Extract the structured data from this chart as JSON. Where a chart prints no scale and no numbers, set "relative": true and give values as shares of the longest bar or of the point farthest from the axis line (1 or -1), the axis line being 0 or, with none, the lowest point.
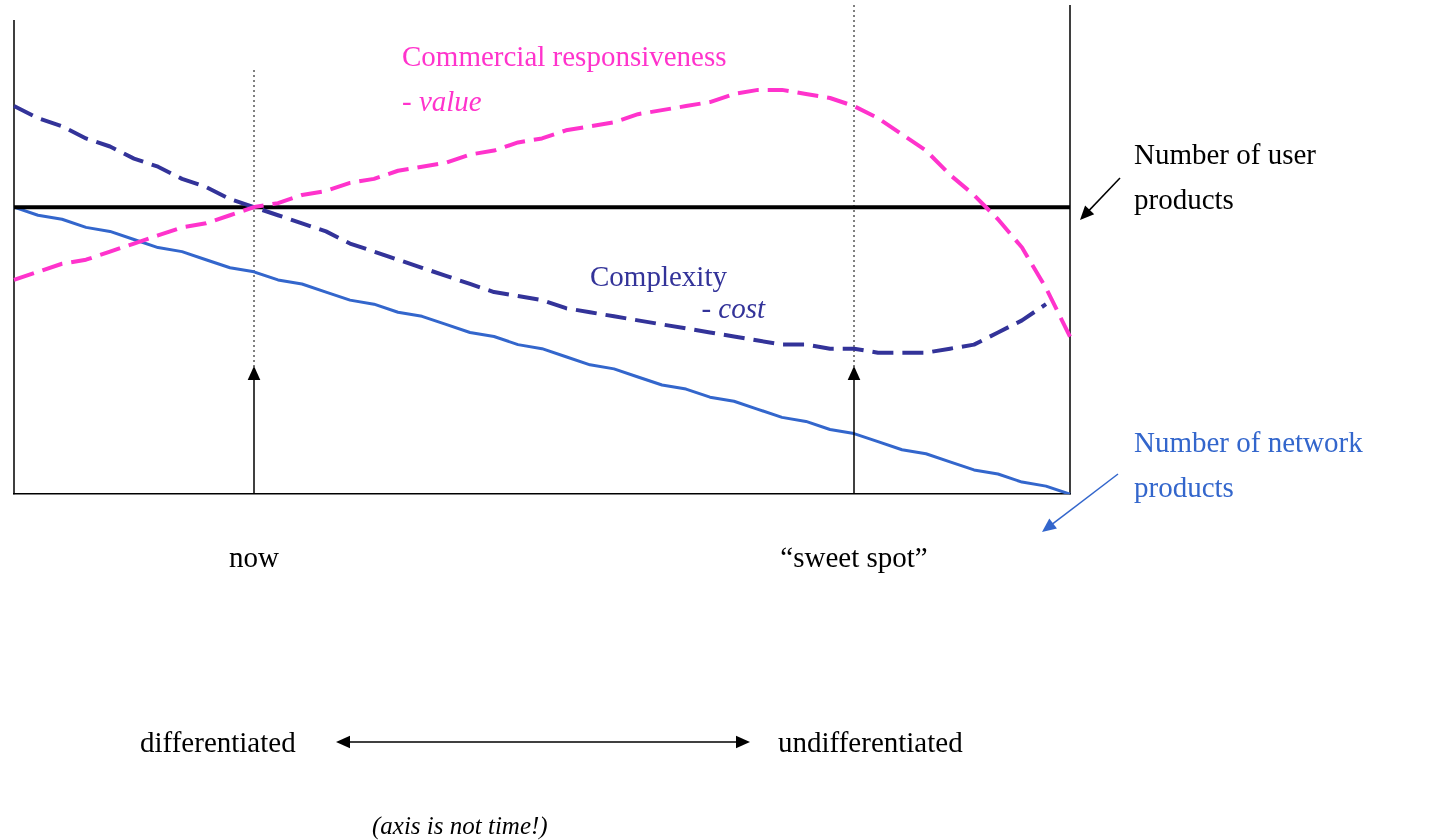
{
  "chart_data": {
    "type": "line",
    "relative": true,
    "legend": "right",
    "grid": false,
    "categories": [
      null,
      null,
      null,
      null,
      null,
      null,
      null,
      null,
      null,
      null,
      "now",
      null,
      null,
      null,
      null,
      null,
      null,
      null,
      null,
      null,
      null,
      null,
      null,
      null,
      null,
      null,
      null,
      null,
      null,
      null,
      null,
      null,
      null,
      null,
      null,
      "“sweet spot”",
      null,
      null,
      null,
      null,
      null,
      null,
      null,
      null,
      null
    ],
    "series": [
      {
        "name": "Commercial responsiveness\n- value",
        "color": "#ff33cc",
        "line_style": "dashed",
        "values": [
          0.53,
          0.55,
          0.57,
          0.58,
          0.6,
          0.62,
          0.64,
          0.66,
          0.67,
          0.69,
          0.71,
          0.72,
          0.74,
          0.75,
          0.77,
          0.78,
          0.8,
          0.81,
          0.82,
          0.84,
          0.85,
          0.87,
          0.88,
          0.9,
          0.91,
          0.92,
          0.94,
          0.95,
          0.96,
          0.97,
          0.99,
          1.0,
          1.0,
          0.99,
          0.98,
          0.96,
          0.93,
          0.89,
          0.85,
          0.79,
          0.74,
          0.68,
          0.61,
          0.51,
          0.39
        ]
      },
      {
        "name": "Complexity\n- cost",
        "color": "#333399",
        "line_style": "dashed",
        "values": [
          0.96,
          0.93,
          0.91,
          0.88,
          0.86,
          0.83,
          0.81,
          0.78,
          0.76,
          0.73,
          0.71,
          0.69,
          0.67,
          0.65,
          0.62,
          0.6,
          0.58,
          0.56,
          0.54,
          0.52,
          0.5,
          0.49,
          0.48,
          0.46,
          0.45,
          0.44,
          0.43,
          0.42,
          0.41,
          0.4,
          0.39,
          0.38,
          0.37,
          0.37,
          0.36,
          0.36,
          0.35,
          0.35,
          0.35,
          0.36,
          0.37,
          0.4,
          0.43,
          0.47,
          null
        ]
      },
      {
        "name": "Number of user\nproducts",
        "color": "#000000",
        "line_style": "solid",
        "values": [
          0.71,
          0.71,
          0.71,
          0.71,
          0.71,
          0.71,
          0.71,
          0.71,
          0.71,
          0.71,
          0.71,
          0.71,
          0.71,
          0.71,
          0.71,
          0.71,
          0.71,
          0.71,
          0.71,
          0.71,
          0.71,
          0.71,
          0.71,
          0.71,
          0.71,
          0.71,
          0.71,
          0.71,
          0.71,
          0.71,
          0.71,
          0.71,
          0.71,
          0.71,
          0.71,
          0.71,
          0.71,
          0.71,
          0.71,
          0.71,
          0.71,
          0.71,
          0.71,
          0.71,
          0.71
        ]
      },
      {
        "name": "Number of network\nproducts",
        "color": "#3366cc",
        "line_style": "solid",
        "values": [
          0.71,
          0.69,
          0.68,
          0.66,
          0.65,
          0.63,
          0.61,
          0.6,
          0.58,
          0.56,
          0.55,
          0.53,
          0.52,
          0.5,
          0.48,
          0.47,
          0.45,
          0.44,
          0.42,
          0.4,
          0.39,
          0.37,
          0.36,
          0.34,
          0.32,
          0.31,
          0.29,
          0.27,
          0.26,
          0.24,
          0.23,
          0.21,
          0.19,
          0.18,
          0.16,
          0.15,
          0.13,
          0.11,
          0.1,
          0.08,
          0.06,
          0.05,
          0.03,
          0.02,
          0
        ]
      }
    ],
    "ref_lines": [
      {
        "axis": "x",
        "value": "now",
        "line_style": "dotted",
        "color": "#000000"
      },
      {
        "axis": "x",
        "value": "“sweet spot”",
        "line_style": "dotted",
        "color": "#000000"
      }
    ],
    "annotations": [
      "differentiated",
      "undifferentiated",
      "(axis is not time!)"
    ]
  }
}
